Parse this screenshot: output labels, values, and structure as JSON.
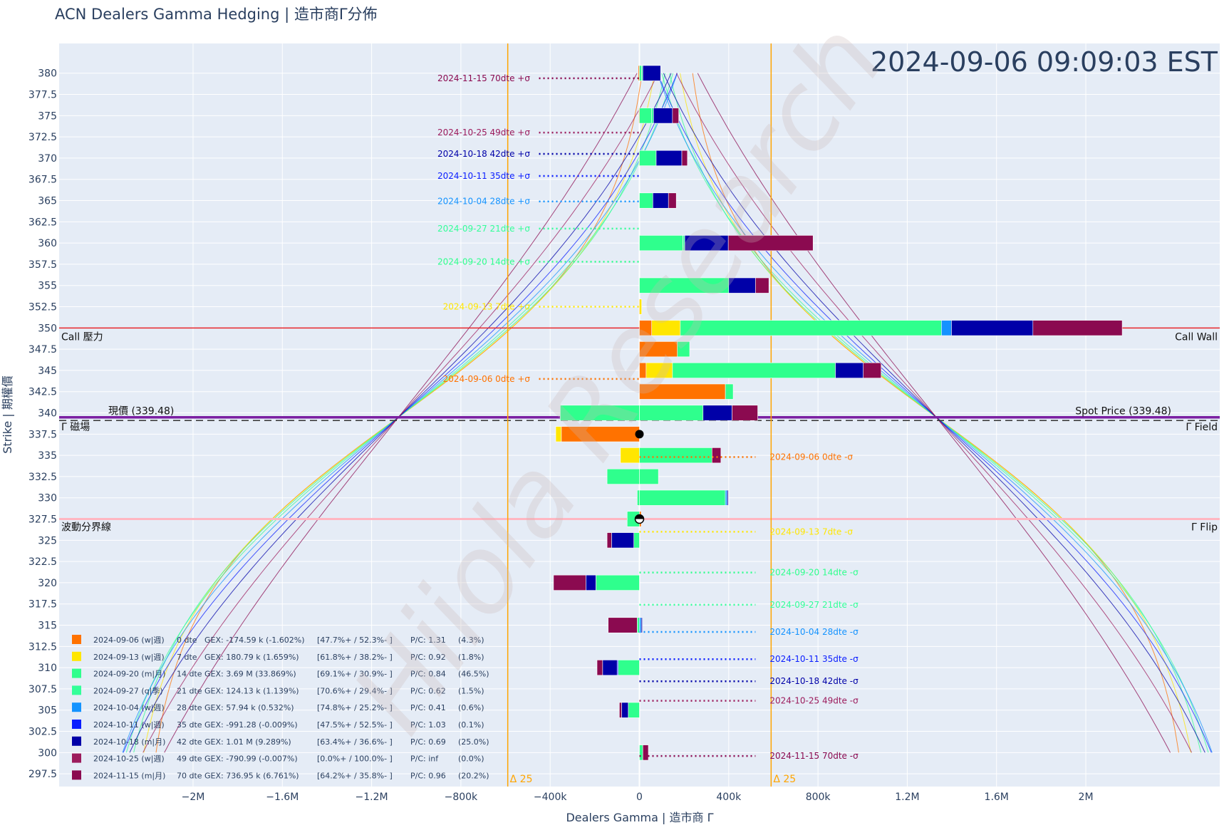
{
  "title": "ACN Dealers Gamma Hedging | 造市商Γ分佈",
  "timestamp": "2024-09-06 09:09:03 EST",
  "watermark": "Hiiola Research",
  "colors": {
    "background": "#e5ecf6",
    "call_wall": "#e8262b",
    "spot": "#7b1fa2",
    "field": "#333333",
    "flip": "#ffb6c1",
    "delta25": "#ffa500"
  },
  "chart_data": {
    "type": "bar",
    "orientation": "horizontal-stacked",
    "xlabel": "Dealers Gamma | 造市商 Γ",
    "ylabel": "Strike | 期權價",
    "xlim": [
      -2600000,
      2600000
    ],
    "ylim": [
      296,
      383.5
    ],
    "x_ticks": [
      {
        "v": -2000000,
        "label": "−2M"
      },
      {
        "v": -1600000,
        "label": "−1.6M"
      },
      {
        "v": -1200000,
        "label": "−1.2M"
      },
      {
        "v": -800000,
        "label": "−800k"
      },
      {
        "v": -400000,
        "label": "−400k"
      },
      {
        "v": 0,
        "label": "0"
      },
      {
        "v": 400000,
        "label": "400k"
      },
      {
        "v": 800000,
        "label": "800k"
      },
      {
        "v": 1200000,
        "label": "1.2M"
      },
      {
        "v": 1600000,
        "label": "1.6M"
      },
      {
        "v": 2000000,
        "label": "2M"
      }
    ],
    "y_ticks": [
      "380",
      "377.5",
      "375",
      "372.5",
      "370",
      "367.5",
      "365",
      "362.5",
      "360",
      "357.5",
      "355",
      "352.5",
      "350",
      "347.5",
      "345",
      "342.5",
      "340",
      "337.5",
      "335",
      "332.5",
      "330",
      "327.5",
      "325",
      "322.5",
      "320",
      "317.5",
      "315",
      "312.5",
      "310",
      "307.5",
      "305",
      "302.5",
      "300",
      "297.5"
    ],
    "series": [
      {
        "name": "2024-09-06 (w|週)",
        "color": "#ff7200",
        "dte": "0 dte",
        "gex": "-174.59 k (-1.602%)",
        "split": "[47.7%+ / 52.3%- ]",
        "pc": "P/C: 1.31",
        "oi": "(4.3%)",
        "plus_label": "2024-09-06 0dte +σ",
        "minus_label": "2024-09-06 0dte -σ",
        "plus_y": 344,
        "minus_y": 334.8,
        "minus_x": 520000,
        "values": [
          {
            "strike": 380,
            "v": -5000
          },
          {
            "strike": 375,
            "v": -3000
          },
          {
            "strike": 370,
            "v": -2000
          },
          {
            "strike": 352.5,
            "v": -2000
          },
          {
            "strike": 350,
            "v": 55000
          },
          {
            "strike": 347.5,
            "v": 170000
          },
          {
            "strike": 345,
            "v": 30000
          },
          {
            "strike": 342.5,
            "v": 385000
          },
          {
            "strike": 337.5,
            "v": -350000
          },
          {
            "strike": 327.5,
            "v": 8000
          }
        ]
      },
      {
        "name": "2024-09-13 (w|週)",
        "color": "#ffe600",
        "dte": "7 dte",
        "gex": "180.79 k (1.659%)",
        "split": "[61.8%+ / 38.2%- ]",
        "pc": "P/C: 0.92",
        "oi": "(1.8%)",
        "plus_label": "2024-09-13 7dte +σ",
        "minus_label": "2024-09-13 7dte -σ",
        "plus_y": 352.5,
        "minus_y": 326,
        "minus_x": 520000,
        "values": [
          {
            "strike": 352.5,
            "v": 10000
          },
          {
            "strike": 350,
            "v": 128000
          },
          {
            "strike": 345,
            "v": 118000
          },
          {
            "strike": 337.5,
            "v": -25000
          },
          {
            "strike": 335,
            "v": -85000
          }
        ]
      },
      {
        "name": "2024-09-20 (m|月)",
        "color": "#2fff8d",
        "dte": "14 dte",
        "gex": "3.69 M (33.869%)",
        "split": "[69.1%+ / 30.9%- ]",
        "pc": "P/C: 0.84",
        "oi": "(46.5%)",
        "plus_label": "2024-09-20 14dte +σ",
        "minus_label": "2024-09-20 14dte -σ",
        "plus_y": 357.8,
        "minus_y": 321.2,
        "minus_x": 520000,
        "values": [
          {
            "strike": 380,
            "v": 10000
          },
          {
            "strike": 375,
            "v": 55000
          },
          {
            "strike": 370,
            "v": 75000
          },
          {
            "strike": 365,
            "v": 60000
          },
          {
            "strike": 360,
            "v": 195000
          },
          {
            "strike": 355,
            "v": 400000
          },
          {
            "strike": 350,
            "v": 1170000
          },
          {
            "strike": 347.5,
            "v": 55000
          },
          {
            "strike": 345,
            "v": 730000
          },
          {
            "strike": 342.5,
            "v": 35000
          },
          {
            "strike": 340,
            "v": 285000,
            "neg": -355000
          },
          {
            "strike": 335,
            "v": 325000
          },
          {
            "strike": 332.5,
            "v": 85000,
            "neg": -145000
          },
          {
            "strike": 330,
            "v": 385000,
            "neg": -10000
          },
          {
            "strike": 327.5,
            "v": 0,
            "neg": -55000
          },
          {
            "strike": 325,
            "v": 0,
            "neg": -25000
          },
          {
            "strike": 320,
            "v": 0,
            "neg": -195000
          },
          {
            "strike": 315,
            "v": 0,
            "neg": -10000
          },
          {
            "strike": 310,
            "v": 0,
            "neg": -95000
          },
          {
            "strike": 305,
            "v": 0,
            "neg": -50000
          },
          {
            "strike": 300,
            "v": 15000
          }
        ]
      },
      {
        "name": "2024-09-27 (q|季)",
        "color": "#33ff99",
        "dte": "21 dte",
        "gex": "124.13 k (1.139%)",
        "split": "[70.6%+ / 29.4%- ]",
        "pc": "P/C: 0.62",
        "oi": "(1.5%)",
        "plus_label": "2024-09-27 21dte +σ",
        "minus_label": "2024-09-27 21dte -σ",
        "plus_y": 361.7,
        "minus_y": 317.4,
        "minus_x": 520000,
        "values": [
          {
            "strike": 380,
            "v": 5000
          },
          {
            "strike": 375,
            "v": 8000
          },
          {
            "strike": 360,
            "v": 8000
          }
        ]
      },
      {
        "name": "2024-10-04 (w|週)",
        "color": "#1493ff",
        "dte": "28 dte",
        "gex": "57.94 k (0.532%)",
        "split": "[74.8%+ / 25.2%- ]",
        "pc": "P/C: 0.41",
        "oi": "(0.6%)",
        "plus_label": "2024-10-04 28dte +σ",
        "minus_label": "2024-10-04 28dte -σ",
        "plus_y": 364.9,
        "minus_y": 314.2,
        "minus_x": 520000,
        "values": [
          {
            "strike": 350,
            "v": 45000
          },
          {
            "strike": 330,
            "v": 8000
          },
          {
            "strike": 315,
            "v": 8000
          }
        ]
      },
      {
        "name": "2024-10-11 (w|週)",
        "color": "#0a1dff",
        "dte": "35 dte",
        "gex": "-991.28 (-0.009%)",
        "split": "[47.5%+ / 52.5%- ]",
        "pc": "P/C: 1.03",
        "oi": "(0.1%)",
        "plus_label": "2024-10-11 35dte +σ",
        "minus_label": "2024-10-11 35dte -σ",
        "plus_y": 367.9,
        "minus_y": 311,
        "minus_x": 520000,
        "values": [
          {
            "strike": 310,
            "v": 0,
            "neg": -5000
          }
        ]
      },
      {
        "name": "2024-10-18 (m|月)",
        "color": "#0000a8",
        "dte": "42 dte",
        "gex": "1.01 M (9.289%)",
        "split": "[63.4%+ / 36.6%- ]",
        "pc": "P/C: 0.69",
        "oi": "(25.0%)",
        "plus_label": "2024-10-18 42dte +σ",
        "minus_label": "2024-10-18 42dte -σ",
        "plus_y": 370.5,
        "minus_y": 308.4,
        "minus_x": 520000,
        "values": [
          {
            "strike": 380,
            "v": 80000
          },
          {
            "strike": 375,
            "v": 85000
          },
          {
            "strike": 370,
            "v": 115000
          },
          {
            "strike": 365,
            "v": 70000
          },
          {
            "strike": 360,
            "v": 195000
          },
          {
            "strike": 355,
            "v": 120000
          },
          {
            "strike": 350,
            "v": 365000
          },
          {
            "strike": 345,
            "v": 125000
          },
          {
            "strike": 340,
            "v": 130000
          },
          {
            "strike": 330,
            "v": 5000
          },
          {
            "strike": 325,
            "v": 0,
            "neg": -100000
          },
          {
            "strike": 320,
            "v": 0,
            "neg": -45000
          },
          {
            "strike": 315,
            "v": 5000
          },
          {
            "strike": 310,
            "v": 0,
            "neg": -65000
          },
          {
            "strike": 305,
            "v": 0,
            "neg": -30000
          }
        ]
      },
      {
        "name": "2024-10-25 (w|週)",
        "color": "#9c1b5c",
        "dte": "49 dte",
        "gex": "-790.99 (-0.007%)",
        "split": "[0.0%+ / 100.0%- ]",
        "pc": "P/C: inf",
        "oi": "(0.0%)",
        "plus_label": "2024-10-25 49dte +σ",
        "minus_label": "2024-10-25 49dte -σ",
        "plus_y": 373,
        "minus_y": 306.1,
        "minus_x": 520000,
        "values": []
      },
      {
        "name": "2024-11-15 (m|月)",
        "color": "#8b0a50",
        "dte": "70 dte",
        "gex": "736.95 k (6.761%)",
        "split": "[64.2%+ / 35.8%- ]",
        "pc": "P/C: 0.96",
        "oi": "(20.2%)",
        "plus_label": "2024-11-15 70dte +σ",
        "minus_label": "2024-11-15 70dte -σ",
        "plus_y": 379.4,
        "minus_y": 299.6,
        "minus_x": 520000,
        "values": [
          {
            "strike": 375,
            "v": 28000
          },
          {
            "strike": 370,
            "v": 25000
          },
          {
            "strike": 365,
            "v": 35000
          },
          {
            "strike": 360,
            "v": 380000
          },
          {
            "strike": 355,
            "v": 60000
          },
          {
            "strike": 350,
            "v": 400000
          },
          {
            "strike": 345,
            "v": 80000
          },
          {
            "strike": 340,
            "v": 115000
          },
          {
            "strike": 335,
            "v": 40000
          },
          {
            "strike": 325,
            "v": 0,
            "neg": -20000
          },
          {
            "strike": 320,
            "v": 0,
            "neg": -145000
          },
          {
            "strike": 315,
            "v": 0,
            "neg": -130000
          },
          {
            "strike": 310,
            "v": 0,
            "neg": -25000
          },
          {
            "strike": 305,
            "v": 0,
            "neg": -10000
          },
          {
            "strike": 300,
            "v": 25000
          }
        ]
      }
    ],
    "levels": {
      "call_wall": {
        "strike": 350,
        "left_label": "Call 壓力",
        "right_label": "Call Wall"
      },
      "spot": {
        "strike": 339.48,
        "left_label": "現價 (339.48)",
        "right_label": "Spot Price (339.48)"
      },
      "gamma_field": {
        "strike": 339.1,
        "left_label": "Γ 磁場",
        "right_label": "Γ Field"
      },
      "flip": {
        "strike": 327.5,
        "left_label": "波動分界線",
        "right_label": "Γ Flip"
      }
    },
    "delta25": {
      "label": "Δ 25",
      "x_left": -590000,
      "x_right": 590000
    },
    "markers": [
      {
        "strike": 337.5,
        "x": 0,
        "style": "filled"
      },
      {
        "strike": 327.5,
        "x": 0,
        "style": "half"
      }
    ]
  }
}
